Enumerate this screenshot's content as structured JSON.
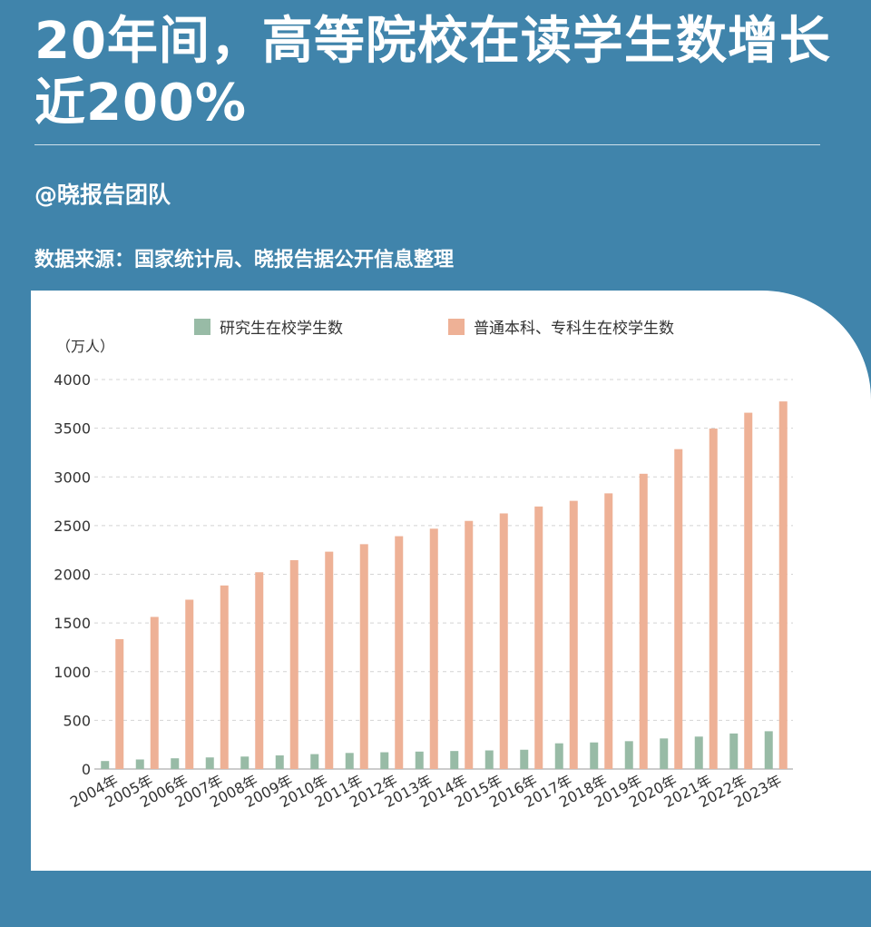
{
  "header": {
    "title": "20年间，高等院校在读学生数增长近200%",
    "author": "@晓报告团队",
    "source": "数据来源：国家统计局、晓报告据公开信息整理"
  },
  "colors": {
    "background": "#4084ab",
    "graduate": "#98bba6",
    "undergraduate": "#eeb196"
  },
  "chart_data": {
    "type": "bar",
    "unit_label": "（万人）",
    "categories": [
      "2004年",
      "2005年",
      "2006年",
      "2007年",
      "2008年",
      "2009年",
      "2010年",
      "2011年",
      "2012年",
      "2013年",
      "2014年",
      "2015年",
      "2016年",
      "2017年",
      "2018年",
      "2019年",
      "2020年",
      "2021年",
      "2022年",
      "2023年"
    ],
    "series": [
      {
        "name": "研究生在校学生数",
        "values": [
          82,
          98,
          110,
          119,
          128,
          140,
          153,
          165,
          172,
          179,
          185,
          191,
          198,
          264,
          273,
          286,
          314,
          333,
          365,
          388
        ]
      },
      {
        "name": "普通本科、专科生在校学生数",
        "values": [
          1334,
          1562,
          1739,
          1885,
          2021,
          2145,
          2232,
          2309,
          2391,
          2468,
          2548,
          2625,
          2696,
          2754,
          2831,
          3032,
          3285,
          3496,
          3659,
          3775
        ]
      }
    ],
    "yticks": [
      0,
      500,
      1000,
      1500,
      2000,
      2500,
      3000,
      3500,
      4000
    ],
    "ylim": [
      0,
      4000
    ],
    "grid": true,
    "legend": "top"
  }
}
